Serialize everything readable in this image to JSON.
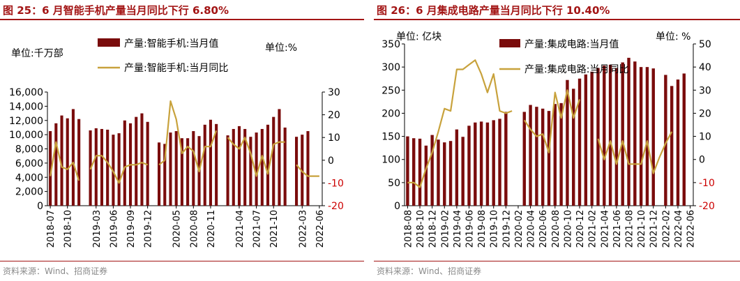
{
  "charts": [
    {
      "title": "图 25：6 月智能手机产量当月同比下行 6.80%",
      "source": "资料来源：Wind、招商证券",
      "legend": [
        "产量:智能手机:当月值",
        "产量:智能手机:当月同比"
      ],
      "left_unit": "单位:千万部",
      "right_unit": "单位:%",
      "colors": {
        "bar": "#7a0c0c",
        "line": "#c8a23c",
        "title": "#a31515",
        "right_axis": "#cc0000"
      }
    },
    {
      "title": "图 26：6 月集成电路产量当月同比下行 10.40%",
      "source": "资料来源：Wind、招商证券",
      "legend": [
        "产量:集成电路:当月值",
        "产量:集成电路:当月同比"
      ],
      "left_unit": "单位: 亿块",
      "right_unit": "单位: %",
      "colors": {
        "bar": "#7a0c0c",
        "line": "#c8a23c",
        "title": "#a31515",
        "right_axis": "#cc0000"
      }
    }
  ],
  "chart_data": [
    {
      "type": "bar",
      "title": "图 25：6 月智能手机产量当月同比下行 6.80%",
      "x": [
        "2018-07",
        "2018-08",
        "2018-09",
        "2018-10",
        "2018-11",
        "2018-12",
        "2019-01",
        "2019-02",
        "2019-03",
        "2019-04",
        "2019-05",
        "2019-06",
        "2019-07",
        "2019-08",
        "2019-09",
        "2019-10",
        "2019-11",
        "2019-12",
        "2020-01",
        "2020-02",
        "2020-03",
        "2020-04",
        "2020-05",
        "2020-06",
        "2020-07",
        "2020-08",
        "2020-09",
        "2020-10",
        "2020-11",
        "2020-12",
        "2021-01",
        "2021-02",
        "2021-03",
        "2021-04",
        "2021-05",
        "2021-06",
        "2021-07",
        "2021-08",
        "2021-09",
        "2021-10",
        "2021-11",
        "2021-12",
        "2022-01",
        "2022-02",
        "2022-03",
        "2022-04",
        "2022-05",
        "2022-06"
      ],
      "x_tick_labels": [
        "2018-07",
        "2018-10",
        "2019-03",
        "2019-06",
        "2019-09",
        "2019-12",
        "2020-05",
        "2020-08",
        "2020-11",
        "2021-04",
        "2021-07",
        "2021-10",
        "2022-03",
        "2022-06"
      ],
      "x_tick_indices": [
        0,
        3,
        8,
        11,
        14,
        17,
        22,
        25,
        28,
        33,
        36,
        39,
        44,
        47
      ],
      "series": [
        {
          "name": "产量:智能手机:当月值",
          "axis": "left",
          "kind": "bar",
          "values": [
            10500,
            11600,
            12700,
            12300,
            13600,
            12200,
            null,
            10600,
            10900,
            10800,
            10700,
            10000,
            10200,
            12000,
            11600,
            12500,
            13000,
            11800,
            null,
            8900,
            8700,
            10300,
            10500,
            9500,
            9500,
            10500,
            9800,
            11400,
            12100,
            11500,
            null,
            9900,
            10800,
            11200,
            10800,
            9700,
            10300,
            10800,
            11400,
            12500,
            13600,
            11000,
            null,
            9700,
            10000,
            10500,
            null,
            null
          ]
        },
        {
          "name": "产量:智能手机:当月同比",
          "axis": "right",
          "kind": "line",
          "values": [
            -7,
            8,
            -3,
            -4,
            -1,
            -9,
            null,
            -4,
            2,
            2,
            -1,
            -5,
            -10,
            -3,
            -2,
            -2,
            -1,
            -2,
            null,
            -2,
            0,
            26,
            18,
            3,
            6,
            4,
            -5,
            6,
            6,
            13,
            null,
            10,
            7,
            5,
            10,
            3,
            -7,
            2,
            -6,
            7,
            8,
            8,
            null,
            -2,
            -5,
            -7,
            -7,
            -7
          ]
        }
      ],
      "ylim_left": [
        0,
        16000
      ],
      "yticks_left": [
        0,
        2000,
        4000,
        6000,
        8000,
        10000,
        12000,
        14000,
        16000
      ],
      "ylim_right": [
        -20,
        30
      ],
      "yticks_right": [
        -20,
        -10,
        0,
        10,
        20,
        30
      ],
      "grid": false,
      "legend_position": "top"
    },
    {
      "type": "bar",
      "title": "图 26：6 月集成电路产量当月同比下行 10.40%",
      "x": [
        "2018-08",
        "2018-09",
        "2018-10",
        "2018-11",
        "2018-12",
        "2019-01",
        "2019-02",
        "2019-03",
        "2019-04",
        "2019-05",
        "2019-06",
        "2019-07",
        "2019-08",
        "2019-09",
        "2019-10",
        "2019-11",
        "2019-12",
        "2020-01",
        "2020-02",
        "2020-03",
        "2020-04",
        "2020-05",
        "2020-06",
        "2020-07",
        "2020-08",
        "2020-09",
        "2020-10",
        "2020-11",
        "2020-12",
        "2021-01",
        "2021-02",
        "2021-03",
        "2021-04",
        "2021-05",
        "2021-06",
        "2021-07",
        "2021-08",
        "2021-09",
        "2021-10",
        "2021-11",
        "2021-12",
        "2022-01",
        "2022-02",
        "2022-03",
        "2022-04",
        "2022-05",
        "2022-06"
      ],
      "x_tick_labels": [
        "2018-08",
        "2018-10",
        "2018-12",
        "2019-02",
        "2019-04",
        "2019-06",
        "2019-08",
        "2019-10",
        "2019-12",
        "2020-02",
        "2020-04",
        "2020-06",
        "2020-08",
        "2020-10",
        "2020-12",
        "2021-02",
        "2021-04",
        "2021-06",
        "2021-08",
        "2021-10",
        "2021-12",
        "2022-02",
        "2022-04",
        "2022-06"
      ],
      "x_tick_indices": [
        0,
        2,
        4,
        6,
        8,
        10,
        12,
        14,
        16,
        18,
        20,
        22,
        24,
        26,
        28,
        30,
        32,
        34,
        36,
        38,
        40,
        42,
        44,
        46
      ],
      "series": [
        {
          "name": "产量:集成电路:当月值",
          "axis": "left",
          "kind": "bar",
          "values": [
            150,
            146,
            145,
            130,
            153,
            143,
            137,
            140,
            165,
            149,
            173,
            180,
            182,
            180,
            185,
            188,
            203,
            null,
            null,
            203,
            218,
            214,
            210,
            205,
            220,
            222,
            272,
            253,
            275,
            284,
            290,
            298,
            303,
            305,
            298,
            310,
            320,
            312,
            300,
            300,
            297,
            null,
            283,
            259,
            273,
            286,
            null
          ]
        },
        {
          "name": "产量:集成电路:当月同比",
          "axis": "right",
          "kind": "line",
          "values": [
            -10,
            -10,
            -12,
            -4,
            3,
            12,
            22,
            21,
            39,
            39,
            41,
            43,
            37,
            29,
            37,
            21,
            20,
            21,
            null,
            17,
            13,
            10,
            11,
            3,
            29,
            18,
            30,
            18,
            26,
            null,
            null,
            9,
            0,
            8,
            -2,
            8,
            -2,
            -2,
            -2,
            8,
            -6,
            1,
            7,
            12,
            null,
            null,
            null
          ]
        }
      ],
      "ylim_left": [
        0,
        350
      ],
      "yticks_left": [
        0,
        50,
        100,
        150,
        200,
        250,
        300,
        350
      ],
      "ylim_right": [
        -20,
        50
      ],
      "yticks_right": [
        -20,
        -10,
        0,
        10,
        20,
        30,
        40,
        50
      ],
      "grid": false,
      "legend_position": "top"
    }
  ]
}
